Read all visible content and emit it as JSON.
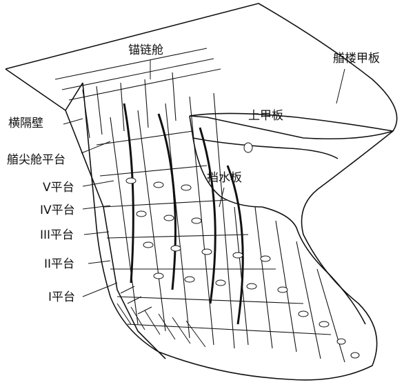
{
  "labels": {
    "anchor_locker": "锚链舱",
    "forecastle_deck": "艏楼甲板",
    "upper_deck": "上甲板",
    "transverse_bulkhead": "横隔壁",
    "forepeak_platform": "艏尖舱平台",
    "platform_v": "V平台",
    "platform_iv": "IV平台",
    "platform_iii": "III平台",
    "platform_ii": "II平台",
    "platform_i": "I平台",
    "swash_plate": "挡水板"
  },
  "colors": {
    "ink": "#111111",
    "paper": "#ffffff"
  }
}
